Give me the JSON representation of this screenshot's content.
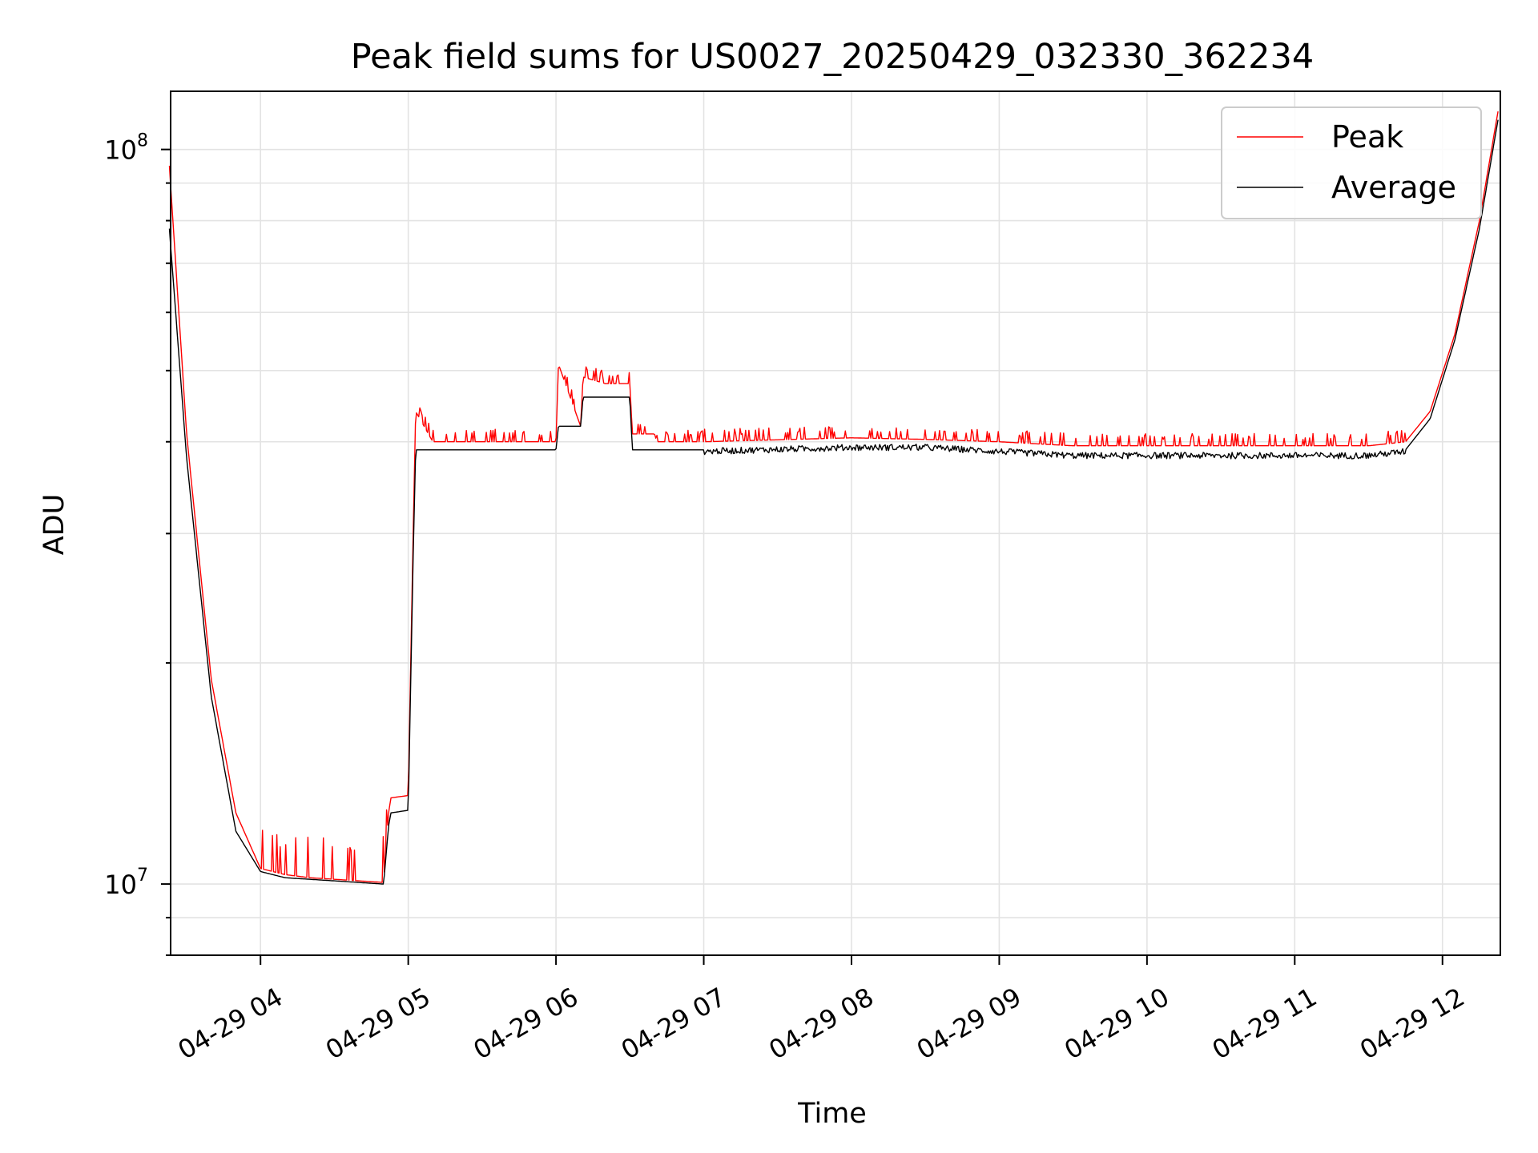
{
  "chart_data": {
    "type": "line",
    "title": "Peak field sums for US0027_20250429_032330_362234",
    "xlabel": "Time",
    "ylabel": "ADU",
    "yscale": "log",
    "xlim": [
      "2025-04-29 03:23:30",
      "2025-04-29 12:23:30"
    ],
    "ylim": [
      8000000,
      120000000
    ],
    "x_ticks": [
      "04-29 04",
      "04-29 05",
      "04-29 06",
      "04-29 07",
      "04-29 08",
      "04-29 09",
      "04-29 10",
      "04-29 11",
      "04-29 12"
    ],
    "y_ticks": [
      "10^8",
      "10^7"
    ],
    "grid": true,
    "legend_position": "top-right",
    "series": [
      {
        "name": "Peak",
        "color": "#ff0000",
        "x": [
          "03:23",
          "03:30",
          "03:40",
          "03:50",
          "04:00",
          "04:10",
          "04:20",
          "04:30",
          "04:40",
          "04:50",
          "04:52",
          "04:53",
          "05:00",
          "05:02",
          "05:03",
          "05:10",
          "05:20",
          "05:30",
          "05:40",
          "05:50",
          "06:00",
          "06:01",
          "06:10",
          "06:11",
          "06:20",
          "06:30",
          "06:31",
          "06:40",
          "06:41",
          "07:00",
          "08:00",
          "08:30",
          "09:00",
          "09:30",
          "10:00",
          "10:30",
          "11:00",
          "11:30",
          "11:45",
          "11:55",
          "12:05",
          "12:15",
          "12:23"
        ],
        "y": [
          95000000,
          41000000,
          19000000,
          12500000,
          10500000,
          10300000,
          10200000,
          10150000,
          10100000,
          10050000,
          12500000,
          13100000,
          13200000,
          30000000,
          44000000,
          40000000,
          40000000,
          40000000,
          40000000,
          40000000,
          40000000,
          51000000,
          42000000,
          49000000,
          48000000,
          48000000,
          41000000,
          41000000,
          40000000,
          40000000,
          40500000,
          40300000,
          40000000,
          39500000,
          39500000,
          39500000,
          39500000,
          39500000,
          40000000,
          44000000,
          56000000,
          80000000,
          115000000
        ]
      },
      {
        "name": "Average",
        "color": "#000000",
        "x": [
          "03:23",
          "03:30",
          "03:40",
          "03:50",
          "04:00",
          "04:10",
          "04:20",
          "04:30",
          "04:40",
          "04:50",
          "04:52",
          "04:53",
          "05:00",
          "05:02",
          "05:03",
          "05:10",
          "05:20",
          "05:30",
          "05:40",
          "05:50",
          "06:00",
          "06:01",
          "06:10",
          "06:11",
          "06:20",
          "06:30",
          "06:31",
          "06:40",
          "06:41",
          "07:00",
          "08:00",
          "08:30",
          "09:00",
          "09:30",
          "10:00",
          "10:30",
          "11:00",
          "11:30",
          "11:45",
          "11:55",
          "12:05",
          "12:15",
          "12:23"
        ],
        "y": [
          78000000,
          38000000,
          18000000,
          11800000,
          10400000,
          10200000,
          10150000,
          10100000,
          10050000,
          10000000,
          12000000,
          12500000,
          12600000,
          28000000,
          39000000,
          39000000,
          39000000,
          39000000,
          39000000,
          39000000,
          39000000,
          42000000,
          42000000,
          46000000,
          46000000,
          46000000,
          39000000,
          39000000,
          39000000,
          39000000,
          39500000,
          39500000,
          39000000,
          38500000,
          38500000,
          38500000,
          38500000,
          38500000,
          39000000,
          43000000,
          55000000,
          78000000,
          112000000
        ]
      }
    ]
  }
}
